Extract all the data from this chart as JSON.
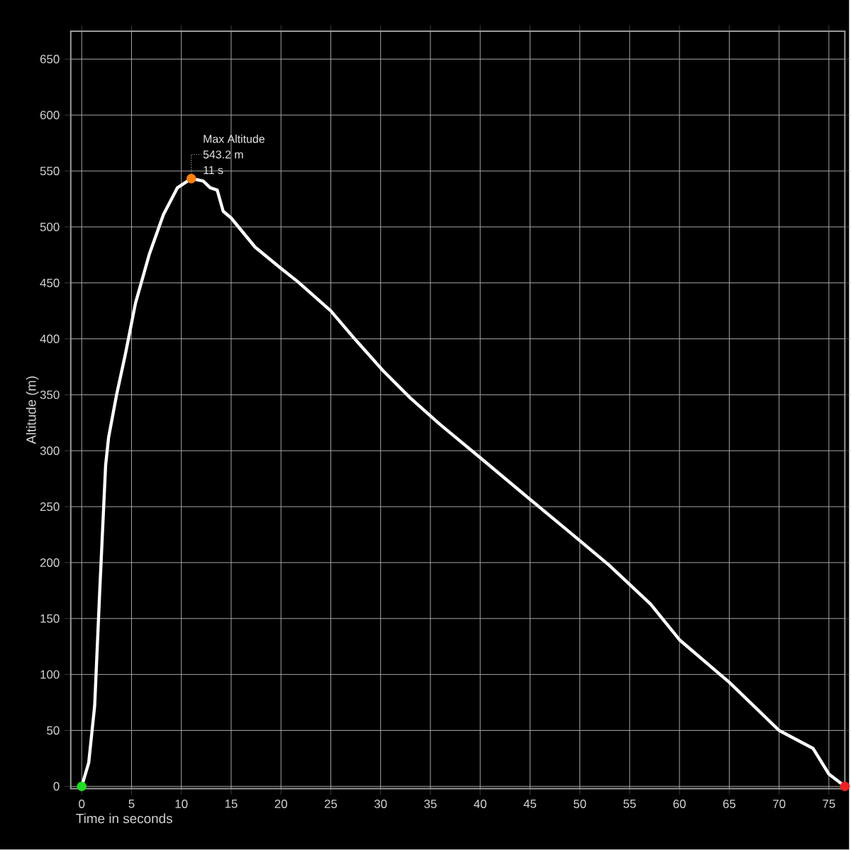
{
  "chart_data": {
    "type": "line",
    "xlabel": "Time in seconds",
    "ylabel": "Altitude (m)",
    "xlim": [
      -1.1,
      76.6
    ],
    "ylim": [
      -2,
      675
    ],
    "xticks": [
      0,
      5,
      10,
      15,
      20,
      25,
      30,
      35,
      40,
      45,
      50,
      55,
      60,
      65,
      70,
      75
    ],
    "yticks": [
      0,
      50,
      100,
      150,
      200,
      250,
      300,
      350,
      400,
      450,
      500,
      550,
      600,
      650
    ],
    "grid": true,
    "line_style": "solid",
    "series": [
      {
        "marker": "none",
        "color": "#ffffff",
        "x": [
          0,
          0.7,
          1.3,
          1.8,
          2.4,
          2.7,
          3.5,
          4.4,
          5.4,
          6.8,
          8.2,
          9.6,
          11,
          12.2,
          12.9,
          13.6,
          14.2,
          15,
          17.4,
          20,
          21.7,
          25,
          27.4,
          30.2,
          33.0,
          35.9,
          40.1,
          44.4,
          48.6,
          52.9,
          57.1,
          60,
          65,
          70,
          73.4,
          75,
          76.6
        ],
        "values": [
          0,
          21,
          72,
          173,
          287,
          312,
          350,
          387,
          432,
          476,
          511,
          535,
          543.2,
          541,
          535,
          533,
          514,
          508,
          482,
          463,
          451,
          425,
          400,
          372,
          347,
          324,
          293,
          261,
          230,
          198,
          163,
          131,
          93,
          50,
          34,
          11,
          0
        ]
      },
      {
        "type": "scatter",
        "marker": "circle",
        "x": [
          0,
          11,
          76.6
        ],
        "values": [
          0,
          543.2,
          0
        ],
        "colors": [
          "#22dd22",
          "#ff7f0e",
          "#ee2222"
        ]
      }
    ],
    "annotations": [
      "Max Altitude",
      "543.2 m",
      "11 s"
    ]
  }
}
